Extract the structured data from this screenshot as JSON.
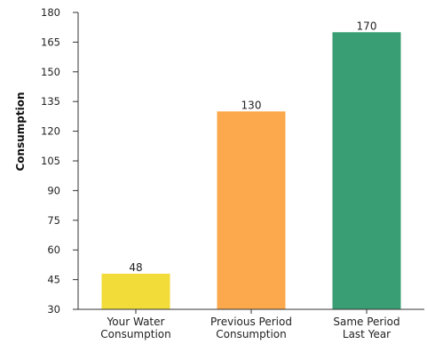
{
  "chart_data": {
    "type": "bar",
    "title": "",
    "xlabel": "",
    "ylabel": "Consumption",
    "ylim": [
      30,
      180
    ],
    "yticks": [
      30,
      45,
      60,
      75,
      90,
      105,
      120,
      135,
      150,
      165,
      180
    ],
    "grid": false,
    "categories": [
      [
        "Your Water",
        "Consumption"
      ],
      [
        "Previous Period",
        "Consumption"
      ],
      [
        "Same Period",
        "Last Year"
      ]
    ],
    "values": [
      48,
      130,
      170
    ],
    "colors": [
      "#f2dc3a",
      "#fba94c",
      "#3a9e74"
    ]
  }
}
